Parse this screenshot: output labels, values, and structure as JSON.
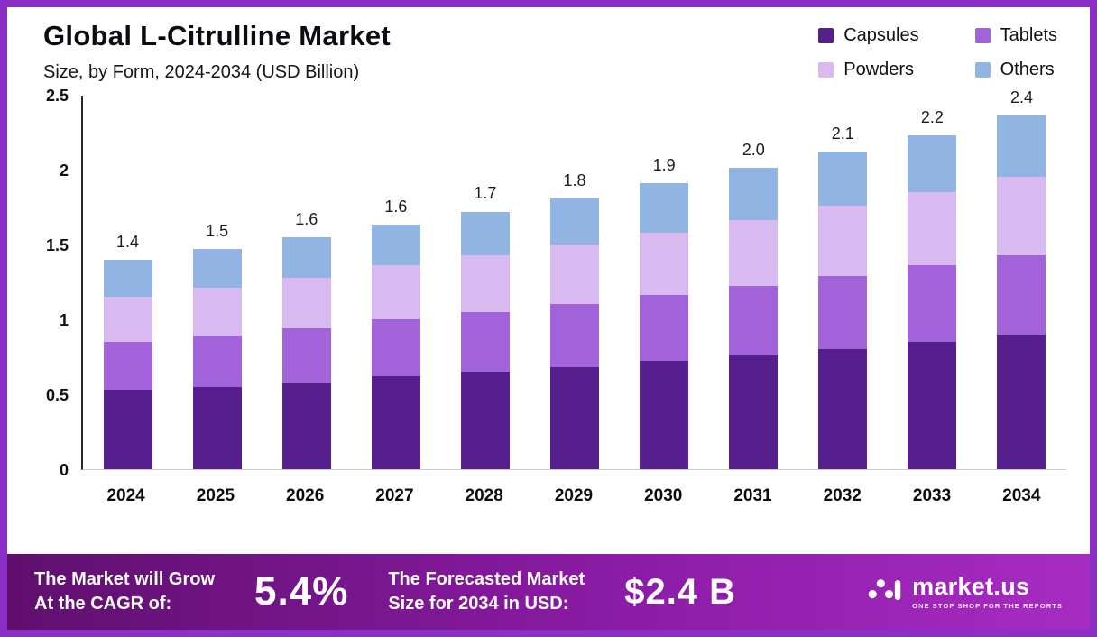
{
  "header": {
    "title": "Global L-Citrulline Market",
    "subtitle": "Size, by Form, 2024-2034 (USD Billion)"
  },
  "chart_data": {
    "type": "bar",
    "stacked": true,
    "title": "Global L-Citrulline Market Size, by Form, 2024-2034 (USD Billion)",
    "xlabel": "",
    "ylabel": "USD Billion",
    "ylim": [
      0,
      2.5
    ],
    "yticks": [
      "0",
      "0.5",
      "1",
      "1.5",
      "2",
      "2.5"
    ],
    "grid": false,
    "legend_position": "top-right",
    "categories": [
      "2024",
      "2025",
      "2026",
      "2027",
      "2028",
      "2029",
      "2030",
      "2031",
      "2032",
      "2033",
      "2034"
    ],
    "series": [
      {
        "name": "Capsules",
        "color": "#55208e",
        "values": [
          0.53,
          0.55,
          0.58,
          0.62,
          0.65,
          0.68,
          0.72,
          0.76,
          0.8,
          0.85,
          0.9
        ]
      },
      {
        "name": "Tablets",
        "color": "#a262d9",
        "values": [
          0.32,
          0.34,
          0.36,
          0.38,
          0.4,
          0.42,
          0.44,
          0.46,
          0.49,
          0.51,
          0.53
        ]
      },
      {
        "name": "Powders",
        "color": "#d9baf0",
        "values": [
          0.3,
          0.32,
          0.34,
          0.36,
          0.38,
          0.4,
          0.42,
          0.44,
          0.47,
          0.49,
          0.52
        ]
      },
      {
        "name": "Others",
        "color": "#92b4e2",
        "values": [
          0.25,
          0.26,
          0.27,
          0.27,
          0.29,
          0.31,
          0.33,
          0.35,
          0.36,
          0.38,
          0.41
        ]
      }
    ],
    "totals": [
      "1.4",
      "1.5",
      "1.6",
      "1.6",
      "1.7",
      "1.8",
      "1.9",
      "2.0",
      "2.1",
      "2.2",
      "2.4"
    ]
  },
  "banner": {
    "growth_label_line1": "The Market will Grow",
    "growth_label_line2": "At the CAGR of:",
    "cagr_value": "5.4%",
    "forecast_label_line1": "The Forecasted Market",
    "forecast_label_line2": "Size for 2034 in USD:",
    "forecast_value": "$2.4 B",
    "brand": {
      "name": "market.us",
      "tagline": "ONE STOP SHOP FOR THE REPORTS"
    }
  },
  "colors": {
    "frame_border": "#8b2fc6",
    "banner_gradient_start": "#5f0f6e",
    "banner_gradient_end": "#a62cc2",
    "capsules": "#55208e",
    "tablets": "#a262d9",
    "powders": "#d9baf0",
    "others": "#92b4e2"
  }
}
